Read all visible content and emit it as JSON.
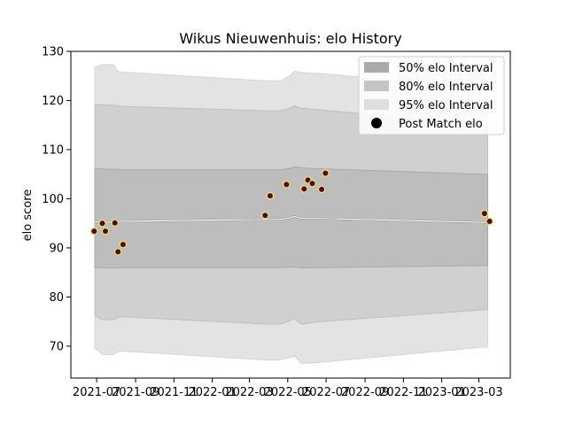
{
  "chart_data": {
    "type": "line",
    "title": "Wikus Nieuwenhuis: elo History",
    "xlabel": "",
    "ylabel": "elo score",
    "ylim": [
      63.5,
      130
    ],
    "xlim": [
      "2021-05-21",
      "2023-04-20"
    ],
    "x_tick_labels": [
      "2021-07",
      "2021-09",
      "2021-11",
      "2022-01",
      "2022-03",
      "2022-05",
      "2022-07",
      "2022-09",
      "2022-11",
      "2023-01",
      "2023-03"
    ],
    "x_ticks": [
      "2021-07-01",
      "2021-09-01",
      "2021-11-01",
      "2022-01-01",
      "2022-03-01",
      "2022-05-01",
      "2022-07-01",
      "2022-09-01",
      "2022-11-01",
      "2023-01-01",
      "2023-03-01"
    ],
    "y_ticks": [
      70,
      80,
      90,
      100,
      110,
      120,
      130
    ],
    "legend_position": "top-right",
    "legend": [
      "50% elo Interval",
      "80% elo Interval",
      "95% elo Interval",
      "Post Match elo"
    ],
    "colors": {
      "band95": "#e3e3e3",
      "band80": "#d0d0d0",
      "band50": "#bdbdbd",
      "band_edge95": "#d6d6d6",
      "band_edge80": "#bfbfbf",
      "band_edge50": "#a9a9a9",
      "mean_line": "#ffffff",
      "mean_line_dark": "#6e6e6e",
      "point_fill": "#440154",
      "point_edge": "#fde725",
      "legend_swatch50": "#aaaaaa",
      "legend_swatch80": "#c4c4c4",
      "legend_swatch95": "#dedede"
    },
    "bands": {
      "x": [
        "2021-06-28",
        "2021-07-10",
        "2021-07-20",
        "2021-07-28",
        "2021-08-03",
        "2021-08-05",
        "2021-08-09",
        "2022-03-25",
        "2022-04-02",
        "2022-04-20",
        "2022-05-04",
        "2022-05-12",
        "2022-05-18",
        "2022-05-22",
        "2022-05-25",
        "2022-06-15",
        "2022-06-22",
        "2023-03-08",
        "2023-03-15"
      ],
      "mean": [
        95.3,
        95.3,
        95.2,
        95.2,
        95.2,
        95.3,
        95.4,
        95.8,
        95.8,
        95.8,
        96.1,
        96.4,
        96.2,
        96.0,
        96.0,
        96.0,
        96.0,
        95.2,
        95.1
      ],
      "lower50": [
        86.0,
        86.0,
        85.9,
        85.9,
        85.9,
        85.9,
        86.0,
        86.0,
        86.0,
        86.0,
        86.1,
        86.1,
        86.0,
        85.9,
        85.9,
        86.0,
        86.0,
        86.4,
        86.4
      ],
      "upper50": [
        106.1,
        106.1,
        106.0,
        106.0,
        106.0,
        106.0,
        105.9,
        105.9,
        105.9,
        105.9,
        106.2,
        106.5,
        106.4,
        106.3,
        106.3,
        106.1,
        106.1,
        105.0,
        104.9
      ],
      "lower80": [
        76.2,
        75.4,
        75.4,
        75.4,
        75.8,
        75.9,
        76.0,
        74.5,
        74.5,
        74.5,
        75.2,
        75.6,
        74.9,
        74.5,
        74.5,
        74.9,
        75.0,
        77.4,
        77.5
      ],
      "upper80": [
        119.1,
        119.1,
        119.1,
        119.0,
        119.0,
        118.8,
        118.8,
        117.9,
        117.9,
        117.9,
        118.4,
        118.9,
        118.6,
        118.4,
        118.4,
        118.2,
        118.1,
        114.9,
        114.8
      ],
      "lower95": [
        69.6,
        68.3,
        68.3,
        68.3,
        68.8,
        68.8,
        69.0,
        67.2,
        67.2,
        67.2,
        67.7,
        67.9,
        67.2,
        66.5,
        66.5,
        66.6,
        66.7,
        69.8,
        69.8
      ],
      "upper95": [
        126.8,
        127.3,
        127.3,
        127.3,
        126.0,
        125.9,
        125.8,
        124.0,
        124.0,
        124.0,
        125.0,
        126.0,
        125.8,
        125.7,
        125.7,
        125.5,
        125.5,
        122.6,
        122.5
      ]
    },
    "series": [
      {
        "name": "Post Match elo",
        "points": [
          {
            "x": "2021-06-27",
            "y": 93.4
          },
          {
            "x": "2021-07-10",
            "y": 95.0
          },
          {
            "x": "2021-07-15",
            "y": 93.4
          },
          {
            "x": "2021-07-30",
            "y": 95.1
          },
          {
            "x": "2021-08-04",
            "y": 89.2
          },
          {
            "x": "2021-08-12",
            "y": 90.7
          },
          {
            "x": "2022-03-26",
            "y": 96.6
          },
          {
            "x": "2022-04-03",
            "y": 100.6
          },
          {
            "x": "2022-04-29",
            "y": 102.9
          },
          {
            "x": "2022-05-27",
            "y": 102.0
          },
          {
            "x": "2022-06-02",
            "y": 103.8
          },
          {
            "x": "2022-06-09",
            "y": 103.1
          },
          {
            "x": "2022-06-24",
            "y": 101.9
          },
          {
            "x": "2022-06-30",
            "y": 105.2
          },
          {
            "x": "2023-03-10",
            "y": 97.0
          },
          {
            "x": "2023-03-18",
            "y": 95.4
          }
        ]
      }
    ]
  }
}
